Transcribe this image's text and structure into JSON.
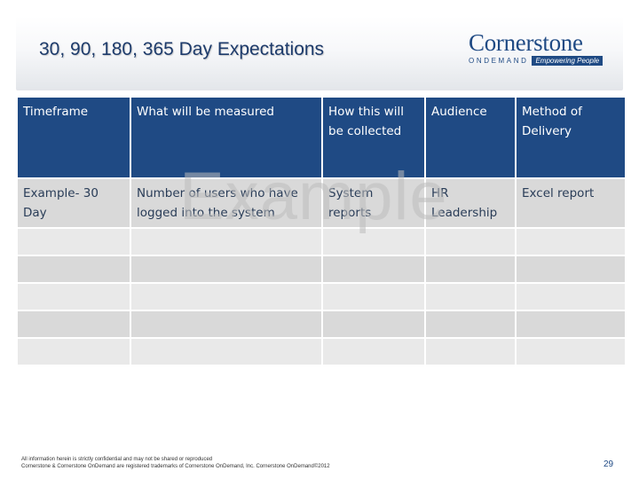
{
  "slide": {
    "title": "30, 90, 180, 365 Day Expectations",
    "logo": {
      "name": "Cornerstone",
      "subname": "ONDEMAND",
      "tagline": "Empowering People"
    },
    "watermark": "Example",
    "table": {
      "headers": [
        "Timeframe",
        "What will be measured",
        "How this will be collected",
        "Audience",
        "Method of Delivery"
      ],
      "example_row": [
        "Example- 30 Day",
        "Number of users who have logged into the system",
        "System reports",
        "HR Leadership",
        "Excel report"
      ],
      "empty_rows": 5
    },
    "footer": {
      "line1": "All information herein is strictly confidential and may not be shared or reproduced",
      "line2": "Cornerstone & Cornerstone OnDemand are registered trademarks of Cornerstone OnDemand, Inc. Cornerstone OnDemand©2012"
    },
    "page_number": "29"
  }
}
